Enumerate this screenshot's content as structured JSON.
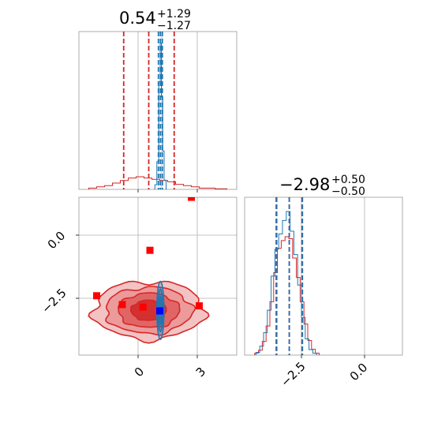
{
  "chart_data": [
    {
      "type": "histogram",
      "panel": "param-1-marginal",
      "title": {
        "median": "0.54",
        "plus": "+1.29",
        "minus": "−1.27"
      },
      "grid": true,
      "series": [
        {
          "name": "",
          "color": "#d62728",
          "bins": [
            [
              -2.5,
              -2.1,
              1
            ],
            [
              -2.1,
              -1.7,
              2
            ],
            [
              -1.7,
              -1.3,
              3
            ],
            [
              -1.3,
              -0.9,
              5
            ],
            [
              -0.9,
              -0.5,
              7
            ],
            [
              -0.5,
              -0.1,
              9
            ],
            [
              -0.1,
              0.3,
              10
            ],
            [
              0.3,
              0.7,
              9
            ],
            [
              0.7,
              1.1,
              8
            ],
            [
              1.1,
              1.5,
              7
            ],
            [
              1.5,
              1.9,
              6
            ],
            [
              1.9,
              2.3,
              4
            ],
            [
              2.3,
              2.7,
              3
            ],
            [
              2.7,
              3.1,
              2
            ],
            [
              3.1,
              3.5,
              1
            ],
            [
              3.5,
              3.9,
              1
            ],
            [
              3.9,
              4.5,
              0.5
            ]
          ],
          "quantiles": [
            -0.73,
            0.54,
            1.83
          ]
        },
        {
          "name": "",
          "color": "#1f77b4",
          "bins": [
            [
              0.85,
              0.95,
              3
            ],
            [
              0.95,
              1.05,
              18
            ],
            [
              1.05,
              1.12,
              70
            ],
            [
              1.12,
              1.18,
              95
            ],
            [
              1.18,
              1.25,
              60
            ],
            [
              1.25,
              1.32,
              25
            ],
            [
              1.32,
              1.42,
              6
            ]
          ],
          "quantiles": [
            1.03,
            1.13,
            1.23
          ]
        }
      ]
    },
    {
      "type": "contour",
      "panel": "param-1-vs-param-2",
      "x_ticks": [
        "0",
        "3"
      ],
      "y_ticks": [
        "0.0",
        "−2.5"
      ],
      "xlim": [
        -3.0,
        5.0
      ],
      "ylim": [
        -4.75,
        1.5
      ],
      "grid": true,
      "series": [
        {
          "name": "",
          "color": "#d62728",
          "center": [
            0.54,
            -2.98
          ],
          "spread": [
            1.55,
            0.6
          ]
        },
        {
          "name": "",
          "color": "#1f77b4",
          "center": [
            1.13,
            -2.98
          ],
          "spread": [
            0.12,
            0.6
          ]
        }
      ],
      "markers": [
        {
          "color": "#ff0000",
          "x": 2.7,
          "y": 1.5
        },
        {
          "color": "#ff0000",
          "x": 0.6,
          "y": -0.6
        },
        {
          "color": "#ff0000",
          "x": -2.1,
          "y": -2.4
        },
        {
          "color": "#ff0000",
          "x": -0.8,
          "y": -2.75
        },
        {
          "color": "#ff0000",
          "x": 0.25,
          "y": -2.85
        },
        {
          "color": "#ff0000",
          "x": 3.1,
          "y": -2.8
        },
        {
          "color": "#0000ff",
          "x": 1.1,
          "y": -3.0
        }
      ]
    },
    {
      "type": "histogram",
      "panel": "param-2-marginal",
      "title": {
        "median": "−2.98",
        "plus": "+0.50",
        "minus": "−0.50"
      },
      "x_ticks": [
        "−2.5",
        "0.0"
      ],
      "xlim": [
        -4.75,
        1.5
      ],
      "grid": true,
      "series": [
        {
          "name": "",
          "color": "#d62728",
          "bins": [
            [
              -4.35,
              -4.2,
              2
            ],
            [
              -4.2,
              -4.05,
              5
            ],
            [
              -4.05,
              -3.9,
              14
            ],
            [
              -3.9,
              -3.75,
              30
            ],
            [
              -3.75,
              -3.6,
              55
            ],
            [
              -3.6,
              -3.45,
              85
            ],
            [
              -3.45,
              -3.3,
              110
            ],
            [
              -3.3,
              -3.15,
              118
            ],
            [
              -3.15,
              -3.0,
              122
            ],
            [
              -3.0,
              -2.85,
              120
            ],
            [
              -2.85,
              -2.7,
              100
            ],
            [
              -2.7,
              -2.55,
              80
            ],
            [
              -2.55,
              -2.4,
              55
            ],
            [
              -2.4,
              -2.25,
              32
            ],
            [
              -2.25,
              -2.1,
              15
            ],
            [
              -2.1,
              -1.95,
              6
            ],
            [
              -1.95,
              -1.8,
              2
            ]
          ],
          "quantiles": [
            -3.48,
            -2.98,
            -2.48
          ]
        },
        {
          "name": "",
          "color": "#1f77b4",
          "bins": [
            [
              -4.3,
              -4.15,
              3
            ],
            [
              -4.15,
              -4.0,
              10
            ],
            [
              -4.0,
              -3.85,
              25
            ],
            [
              -3.85,
              -3.7,
              50
            ],
            [
              -3.7,
              -3.55,
              88
            ],
            [
              -3.55,
              -3.4,
              118
            ],
            [
              -3.4,
              -3.25,
              135
            ],
            [
              -3.25,
              -3.1,
              150
            ],
            [
              -3.1,
              -2.95,
              160
            ],
            [
              -2.95,
              -2.8,
              138
            ],
            [
              -2.8,
              -2.65,
              112
            ],
            [
              -2.65,
              -2.5,
              78
            ],
            [
              -2.5,
              -2.35,
              42
            ],
            [
              -2.35,
              -2.2,
              18
            ],
            [
              -2.2,
              -2.05,
              6
            ],
            [
              -2.05,
              -1.9,
              2
            ]
          ],
          "quantiles": [
            -3.5,
            -2.98,
            -2.46
          ]
        }
      ]
    }
  ]
}
